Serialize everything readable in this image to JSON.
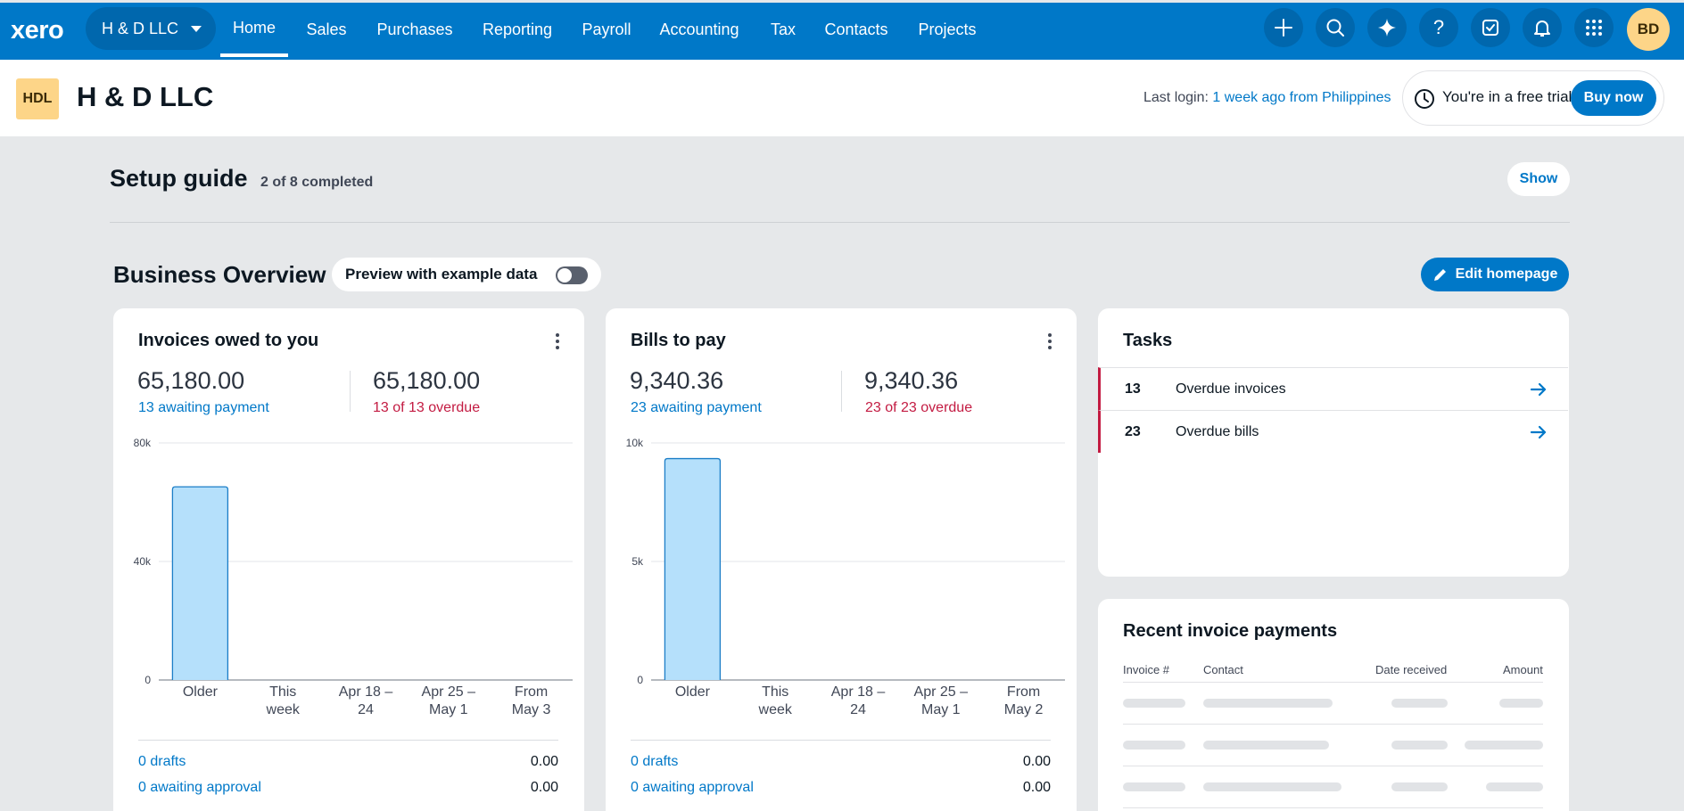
{
  "nav": {
    "logo": "xero",
    "org_switcher": "H & D LLC",
    "items": [
      "Home",
      "Sales",
      "Purchases",
      "Reporting",
      "Payroll",
      "Accounting",
      "Tax",
      "Contacts",
      "Projects"
    ],
    "active": "Home",
    "icons": [
      "plus-icon",
      "search-icon",
      "sparkle-icon",
      "help-icon",
      "checklist-icon",
      "bell-icon",
      "apps-grid-icon"
    ],
    "avatar_initials": "BD"
  },
  "org": {
    "badge": "HDL",
    "name": "H & D LLC",
    "last_login_label": "Last login:",
    "last_login_value": "1 week ago from Philippines",
    "trial_text": "You're in a free trial",
    "buy_now": "Buy now"
  },
  "setup": {
    "title": "Setup guide",
    "progress": "2 of 8 completed",
    "show_button": "Show"
  },
  "overview": {
    "title": "Business Overview",
    "preview_label": "Preview with example data",
    "preview_on": false,
    "edit_button": "Edit homepage"
  },
  "invoices_card": {
    "title": "Invoices owed to you",
    "total": "65,180.00",
    "awaiting": "13 awaiting payment",
    "overdue_total": "65,180.00",
    "overdue": "13 of 13 overdue",
    "drafts_label": "0 drafts",
    "drafts_value": "0.00",
    "approval_label": "0 awaiting approval",
    "approval_value": "0.00"
  },
  "bills_card": {
    "title": "Bills to pay",
    "total": "9,340.36",
    "awaiting": "23 awaiting payment",
    "overdue_total": "9,340.36",
    "overdue": "23 of 23 overdue",
    "drafts_label": "0 drafts",
    "drafts_value": "0.00",
    "approval_label": "0 awaiting approval",
    "approval_value": "0.00"
  },
  "tasks": {
    "title": "Tasks",
    "items": [
      {
        "count": "13",
        "label": "Overdue invoices"
      },
      {
        "count": "23",
        "label": "Overdue bills"
      }
    ]
  },
  "recent_payments": {
    "title": "Recent invoice payments",
    "columns": [
      "Invoice #",
      "Contact",
      "Date received",
      "Amount"
    ]
  },
  "colors": {
    "brand": "#0078c8",
    "overdue": "#c31b42",
    "bar_fill": "#b5e0fb",
    "bar_stroke": "#1c7ec7"
  },
  "chart_data": [
    {
      "type": "bar",
      "categories": [
        "Older",
        "This week",
        "Apr 18 – 24",
        "Apr 25 – May 1",
        "From May 3"
      ],
      "category_lines": [
        [
          "Older"
        ],
        [
          "This",
          "week"
        ],
        [
          "Apr 18 –",
          "24"
        ],
        [
          "Apr 25 –",
          "May 1"
        ],
        [
          "From",
          "May 3"
        ]
      ],
      "values": [
        65180,
        0,
        0,
        0,
        0
      ],
      "ylim": [
        0,
        80000
      ],
      "yticks": [
        0,
        40000,
        80000
      ],
      "ytick_labels": [
        "0",
        "40k",
        "80k"
      ],
      "grid": true
    },
    {
      "type": "bar",
      "categories": [
        "Older",
        "This week",
        "Apr 18 – 24",
        "Apr 25 – May 1",
        "From May 2"
      ],
      "category_lines": [
        [
          "Older"
        ],
        [
          "This",
          "week"
        ],
        [
          "Apr 18 –",
          "24"
        ],
        [
          "Apr 25 –",
          "May 1"
        ],
        [
          "From",
          "May 2"
        ]
      ],
      "values": [
        9340.36,
        0,
        0,
        0,
        0
      ],
      "ylim": [
        0,
        10000
      ],
      "yticks": [
        0,
        5000,
        10000
      ],
      "ytick_labels": [
        "0",
        "5k",
        "10k"
      ],
      "grid": true
    }
  ]
}
